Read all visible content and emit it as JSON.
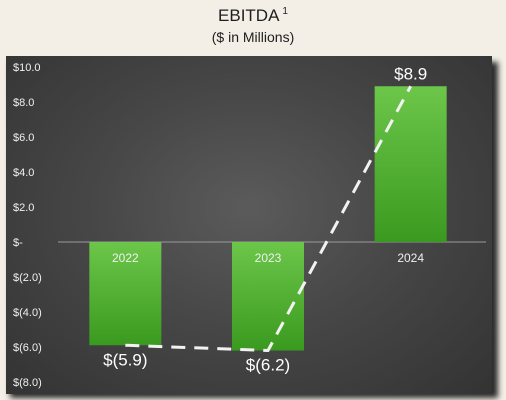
{
  "chart_data": {
    "type": "bar",
    "title": "EBITDA",
    "title_superscript": "1",
    "subtitle": "($ in Millions)",
    "categories": [
      "2022",
      "2023",
      "2024"
    ],
    "values": [
      -5.9,
      -6.2,
      8.9
    ],
    "data_labels": [
      "$(5.9)",
      "$(6.2)",
      "$8.9"
    ],
    "ylim": [
      -8,
      10
    ],
    "yticks": [
      10,
      8,
      6,
      4,
      2,
      0,
      -2,
      -4,
      -6,
      -8
    ],
    "ytick_labels": [
      "$10.0",
      "$8.0",
      "$6.0",
      "$4.0",
      "$2.0",
      "$-",
      "$(2.0)",
      "$(4.0)",
      "$(6.0)",
      "$(8.0)"
    ],
    "grid": false,
    "trend_line": "dashed",
    "colors": {
      "bar_top": "#6cc64a",
      "bar_bottom": "#3a9a1f",
      "trend_line": "#f2f2f2",
      "axis_text": "#f0f0f0",
      "panel": "#474747"
    }
  }
}
